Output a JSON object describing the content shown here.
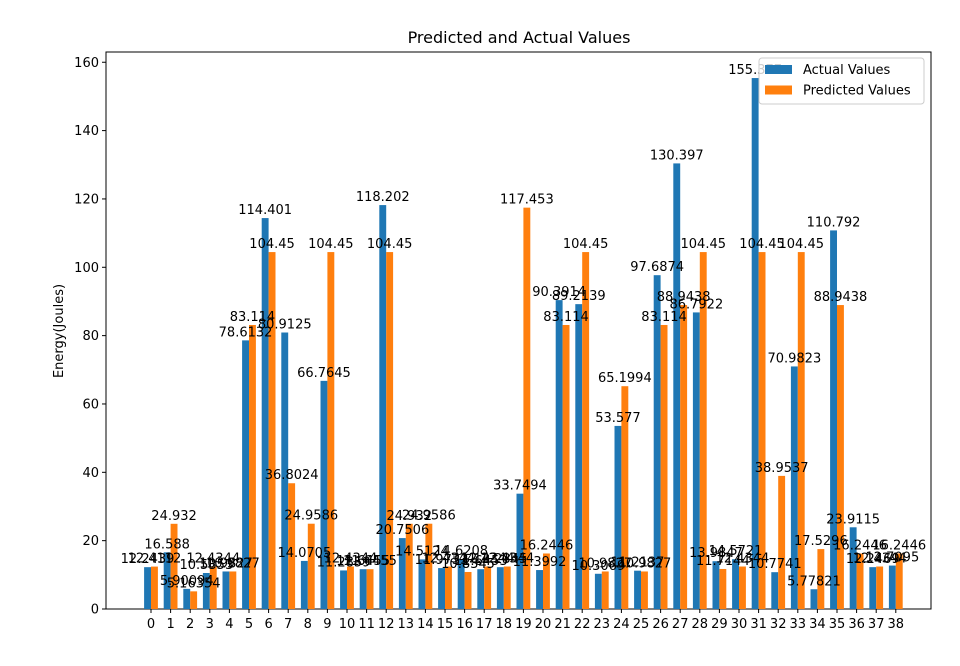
{
  "chart_data": {
    "type": "bar",
    "title": "Predicted and Actual Values",
    "xlabel": "",
    "ylabel": "Energy(Joules)",
    "ylim": [
      0,
      163
    ],
    "yticks": [
      0,
      20,
      40,
      60,
      80,
      100,
      120,
      140,
      160
    ],
    "grid": false,
    "legend_position": "top-right",
    "categories": [
      "0",
      "1",
      "2",
      "3",
      "4",
      "5",
      "6",
      "7",
      "8",
      "9",
      "10",
      "11",
      "12",
      "13",
      "14",
      "15",
      "16",
      "17",
      "18",
      "19",
      "20",
      "21",
      "22",
      "23",
      "24",
      "25",
      "26",
      "27",
      "28",
      "29",
      "30",
      "31",
      "32",
      "33",
      "34",
      "35",
      "36",
      "37",
      "38"
    ],
    "series": [
      {
        "name": "Actual Values",
        "color": "#1f77b4",
        "values": [
          12.2439,
          16.588,
          5.90094,
          10.5353,
          10.9827,
          78.6132,
          114.401,
          80.9125,
          14.0705,
          66.7645,
          11.2859,
          11.6455,
          118.202,
          20.7506,
          14.5124,
          11.9733,
          14.6208,
          11.6453,
          12.2345,
          33.7494,
          11.3992,
          90.3914,
          89.2139,
          10.3069,
          53.577,
          11.2137,
          97.6874,
          130.397,
          86.7922,
          13.9847,
          14.5721,
          155.377,
          10.7741,
          70.9823,
          5.77821,
          110.792,
          23.9115,
          12.2469,
          12.7095
        ],
        "labels": [
          "12.2439",
          "16.588",
          "5.90094",
          "10.5353",
          "10.9827",
          "78.6132",
          "114.401",
          "80.9125",
          "14.0705",
          "66.7645",
          "11.2859",
          "11.6455",
          "118.202",
          "20.7506",
          "14.5124",
          "11.9733",
          "14.6208",
          "11.6453",
          "12.2345",
          "33.7494",
          "11.3992",
          "90.3914",
          "89.2139",
          "10.3069",
          "53.577",
          "11.2137",
          "97.6874",
          "130.397",
          "86.7922",
          "13.9847",
          "14.5721",
          "155.377",
          "10.7741",
          "70.9823",
          "5.77821",
          "110.792",
          "23.9115",
          "12.2469",
          "12.7095"
        ]
      },
      {
        "name": "Predicted Values",
        "color": "#ff7f0e",
        "values": [
          12.4112,
          24.932,
          5.16354,
          12.4344,
          10.9827,
          83.114,
          104.45,
          36.8024,
          24.9586,
          104.45,
          12.4344,
          11.6455,
          104.45,
          24.932,
          24.9586,
          12.4344,
          10.8345,
          12.4344,
          12.4344,
          117.453,
          16.2446,
          83.114,
          104.45,
          10.9827,
          65.1994,
          10.9827,
          83.114,
          88.9438,
          104.45,
          11.7144,
          12.4344,
          104.45,
          38.9537,
          104.45,
          17.5296,
          88.9438,
          16.2446,
          12.4344,
          16.2446
        ],
        "labels": [
          "12.4112",
          "24.932",
          "5.16354",
          "12.4344",
          "10.9827",
          "83.114",
          "104.45",
          "36.8024",
          "24.9586",
          "104.45",
          "12.4344",
          "11.6455",
          "104.45",
          "24.932",
          "24.9586",
          "12.4344",
          "10.8345",
          "12.4344",
          "12.4344",
          "117.453",
          "16.2446",
          "83.114",
          "104.45",
          "10.9827",
          "65.1994",
          "10.9827",
          "83.114",
          "88.9438",
          "104.45",
          "11.7144",
          "12.4344",
          "104.45",
          "38.9537",
          "104.45",
          "17.5296",
          "88.9438",
          "16.2446",
          "12.4344",
          "16.2446"
        ]
      }
    ]
  }
}
